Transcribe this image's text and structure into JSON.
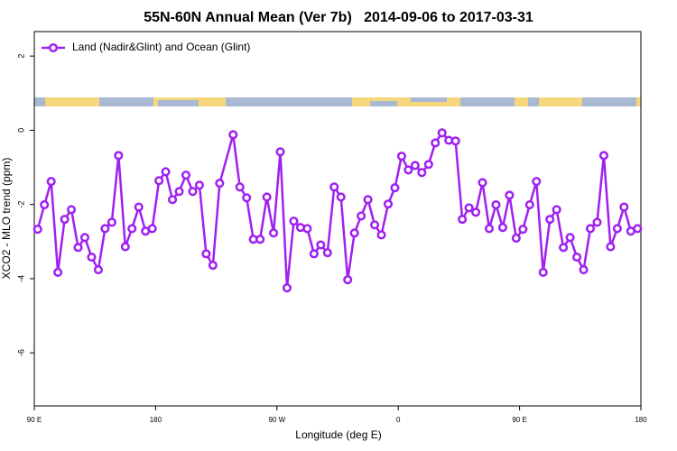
{
  "chart_data": {
    "type": "line",
    "title": "55N-60N Annual Mean (Ver 7b)   2014-09-06 to 2017-03-31",
    "xlabel": "Longitude (deg E)",
    "ylabel": "XCO2 - MLO trend (ppm)",
    "xlim": [
      90,
      540
    ],
    "ylim": [
      -7.43,
      2.66
    ],
    "xticks": [
      {
        "value": 90,
        "label": "90 E"
      },
      {
        "value": 180,
        "label": "180"
      },
      {
        "value": 270,
        "label": "90 W"
      },
      {
        "value": 360,
        "label": "0"
      },
      {
        "value": 450,
        "label": "90 E"
      },
      {
        "value": 540,
        "label": "180"
      }
    ],
    "yticks": [
      -6,
      -4,
      -2,
      0,
      2
    ],
    "legend": "top-left",
    "x": [
      92.5,
      97.5,
      102.5,
      107.5,
      112.5,
      117.5,
      122.5,
      127.5,
      132.5,
      137.5,
      142.5,
      147.5,
      152.5,
      157.5,
      162.5,
      167.5,
      172.5,
      177.5,
      182.5,
      187.5,
      192.5,
      197.5,
      202.5,
      207.5,
      212.5,
      217.5,
      222.5,
      227.5,
      237.5,
      242.5,
      247.5,
      252.5,
      257.5,
      262.5,
      267.5,
      272.5,
      277.5,
      282.5,
      287.5,
      292.5,
      297.5,
      302.5,
      307.5,
      312.5,
      317.5,
      322.5,
      327.5,
      332.5,
      337.5,
      342.5,
      347.5,
      352.5,
      357.5,
      362.5,
      367.5,
      372.5,
      377.5,
      382.5,
      387.5,
      392.5,
      397.5,
      402.5,
      407.5,
      412.5,
      417.5,
      422.5,
      427.5,
      432.5,
      437.5,
      442.5,
      447.5,
      452.5,
      457.5,
      462.5,
      467.5,
      472.5,
      477.5,
      482.5,
      487.5,
      492.5,
      497.5,
      502.5,
      507.5,
      512.5,
      517.5,
      522.5,
      527.5,
      532.5,
      537.5
    ],
    "series": [
      {
        "name": "Land (Nadir&Glint) and Ocean (Glint)",
        "color": "#a020f0",
        "values": [
          -2.67,
          -2.01,
          -1.38,
          -3.83,
          -2.4,
          -2.14,
          -3.16,
          -2.89,
          -3.42,
          -3.76,
          -2.65,
          -2.48,
          -0.68,
          -3.14,
          -2.65,
          -2.07,
          -2.72,
          -2.65,
          -1.36,
          -1.12,
          -1.87,
          -1.65,
          -1.21,
          -1.65,
          -1.48,
          -3.33,
          -3.64,
          -1.43,
          -0.12,
          -1.53,
          -1.82,
          -2.94,
          -2.94,
          -1.8,
          -2.77,
          -0.58,
          -4.25,
          -2.45,
          -2.62,
          -2.65,
          -3.33,
          -3.09,
          -3.3,
          -1.53,
          -1.8,
          -4.03,
          -2.77,
          -2.31,
          -1.87,
          -2.55,
          -2.82,
          -1.99,
          -1.55,
          -0.7,
          -1.07,
          -0.95,
          -1.14,
          -0.92,
          -0.34,
          -0.07,
          -0.27,
          -0.29,
          -2.4,
          -2.09,
          -2.21,
          -1.41,
          -2.65,
          -2.01,
          -2.62,
          -1.75,
          -2.91,
          -2.67,
          -2.01,
          -1.38,
          -3.83,
          -2.4,
          -2.14,
          -3.16,
          -2.89,
          -3.42,
          -3.76,
          -2.65,
          -2.48,
          -0.68,
          -3.14,
          -2.65,
          -2.07,
          -2.72,
          -2.65
        ]
      }
    ]
  }
}
